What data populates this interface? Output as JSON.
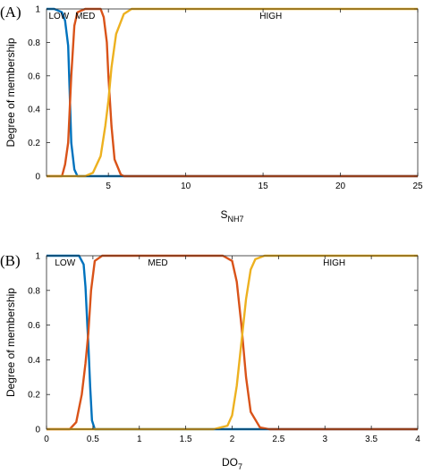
{
  "chart_data": [
    {
      "type": "line",
      "panel_label": "(A)",
      "ylabel": "Degree of membership",
      "xlabel_main": "S",
      "xlabel_sub": "NH7",
      "xlim": [
        1,
        25
      ],
      "ylim": [
        0,
        1
      ],
      "xticks": [
        5,
        10,
        15,
        20,
        25
      ],
      "yticks": [
        0,
        0.2,
        0.4,
        0.6,
        0.8,
        1
      ],
      "grid": false,
      "series_colors": [
        "#0072bd",
        "#d95319",
        "#edb120"
      ],
      "series": [
        {
          "name": "LOW",
          "x": [
            1,
            1.5,
            2.0,
            2.2,
            2.4,
            2.5,
            2.6,
            2.8,
            3.0,
            3.5,
            5,
            10,
            15,
            20,
            25
          ],
          "y": [
            1,
            1,
            0.98,
            0.93,
            0.78,
            0.5,
            0.2,
            0.04,
            0,
            0,
            0,
            0,
            0,
            0,
            0
          ]
        },
        {
          "name": "MED",
          "x": [
            1,
            2.0,
            2.2,
            2.4,
            2.5,
            2.6,
            2.8,
            3.0,
            3.5,
            4.5,
            4.7,
            4.9,
            5.0,
            5.2,
            5.4,
            5.8,
            6.0,
            8,
            15,
            25
          ],
          "y": [
            0,
            0,
            0.07,
            0.2,
            0.4,
            0.6,
            0.9,
            0.98,
            1,
            1,
            0.95,
            0.8,
            0.6,
            0.3,
            0.1,
            0.01,
            0,
            0,
            0,
            0
          ]
        },
        {
          "name": "HIGH",
          "x": [
            1,
            3.5,
            4.0,
            4.5,
            4.8,
            5.0,
            5.2,
            5.5,
            6.0,
            6.5,
            7,
            10,
            15,
            20,
            25
          ],
          "y": [
            0,
            0,
            0.02,
            0.12,
            0.3,
            0.45,
            0.65,
            0.85,
            0.97,
            1,
            1,
            1,
            1,
            1,
            1
          ]
        }
      ],
      "annotations": [
        {
          "text": "LOW",
          "x": 1.8
        },
        {
          "text": "MED",
          "x": 3.5
        },
        {
          "text": "HIGH",
          "x": 15.5
        }
      ]
    },
    {
      "type": "line",
      "panel_label": "(B)",
      "ylabel": "Degree of membership",
      "xlabel_main": "DO",
      "xlabel_sub": "7",
      "xlim": [
        0,
        4
      ],
      "ylim": [
        0,
        1
      ],
      "xticks": [
        0,
        0.5,
        1,
        1.5,
        2,
        2.5,
        3,
        3.5,
        4
      ],
      "yticks": [
        0,
        0.2,
        0.4,
        0.6,
        0.8,
        1
      ],
      "grid": false,
      "series_colors": [
        "#0072bd",
        "#d95319",
        "#edb120"
      ],
      "series": [
        {
          "name": "LOW",
          "x": [
            0,
            0.35,
            0.4,
            0.42,
            0.44,
            0.45,
            0.47,
            0.49,
            0.52,
            1,
            2,
            3,
            4
          ],
          "y": [
            1,
            1,
            0.95,
            0.82,
            0.6,
            0.5,
            0.25,
            0.05,
            0,
            0,
            0,
            0,
            0
          ]
        },
        {
          "name": "MED",
          "x": [
            0,
            0.25,
            0.32,
            0.38,
            0.42,
            0.45,
            0.48,
            0.52,
            0.6,
            1.9,
            2.0,
            2.05,
            2.1,
            2.15,
            2.2,
            2.3,
            2.4,
            3,
            4
          ],
          "y": [
            0,
            0,
            0.04,
            0.2,
            0.38,
            0.55,
            0.8,
            0.97,
            1,
            1,
            0.97,
            0.85,
            0.6,
            0.3,
            0.1,
            0.01,
            0,
            0,
            0
          ]
        },
        {
          "name": "HIGH",
          "x": [
            0,
            1.8,
            1.95,
            2.0,
            2.05,
            2.1,
            2.15,
            2.2,
            2.25,
            2.35,
            2.5,
            3,
            4
          ],
          "y": [
            0,
            0,
            0.02,
            0.08,
            0.25,
            0.5,
            0.75,
            0.92,
            0.98,
            1,
            1,
            1,
            1
          ]
        }
      ],
      "annotations": [
        {
          "text": "LOW",
          "x": 0.2
        },
        {
          "text": "MED",
          "x": 1.2
        },
        {
          "text": "HIGH",
          "x": 3.1
        }
      ]
    }
  ]
}
